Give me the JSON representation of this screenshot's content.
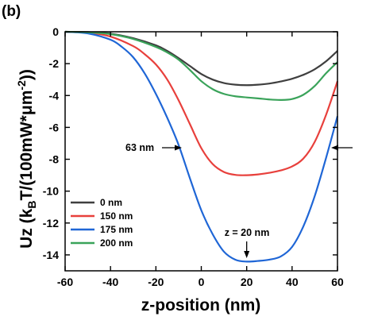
{
  "chart_data": {
    "type": "line",
    "panel_label": "(b)",
    "xlabel": "z-position (nm)",
    "ylabel_parts": {
      "pre": "Uz (k",
      "sub": "B",
      "mid": "T/(100mW*μm",
      "sup": "-2",
      "post": "))"
    },
    "xlim": [
      -60,
      60
    ],
    "ylim": [
      -15,
      0
    ],
    "xticks": [
      -60,
      -40,
      -20,
      0,
      20,
      40,
      60
    ],
    "yticks": [
      0,
      -2,
      -4,
      -6,
      -8,
      -10,
      -12,
      -14
    ],
    "legend_position": "lower-left",
    "grid": false,
    "series": [
      {
        "name": "0 nm",
        "color": "#3f3f3f",
        "x": [
          -60,
          -50,
          -40,
          -30,
          -20,
          -15,
          -10,
          -5,
          0,
          5,
          10,
          15,
          20,
          25,
          30,
          35,
          40,
          45,
          50,
          55,
          60
        ],
        "y": [
          0,
          -0.02,
          -0.12,
          -0.4,
          -0.85,
          -1.2,
          -1.65,
          -2.15,
          -2.65,
          -3.0,
          -3.22,
          -3.32,
          -3.35,
          -3.32,
          -3.25,
          -3.12,
          -2.95,
          -2.7,
          -2.35,
          -1.85,
          -1.2
        ]
      },
      {
        "name": "150 nm",
        "color": "#e8403c",
        "x": [
          -60,
          -50,
          -40,
          -30,
          -25,
          -20,
          -15,
          -10,
          -5,
          0,
          5,
          10,
          15,
          20,
          25,
          30,
          35,
          40,
          45,
          50,
          55,
          60
        ],
        "y": [
          0,
          -0.05,
          -0.3,
          -0.9,
          -1.4,
          -2.05,
          -3.0,
          -4.3,
          -5.8,
          -7.3,
          -8.3,
          -8.8,
          -8.98,
          -9.0,
          -8.95,
          -8.85,
          -8.7,
          -8.45,
          -7.95,
          -6.9,
          -5.2,
          -3.1
        ]
      },
      {
        "name": "175 nm",
        "color": "#1f66d6",
        "x": [
          -60,
          -50,
          -40,
          -35,
          -30,
          -25,
          -20,
          -15,
          -10,
          -5,
          0,
          5,
          10,
          15,
          20,
          25,
          30,
          35,
          40,
          45,
          50,
          55,
          60
        ],
        "y": [
          0,
          -0.1,
          -0.5,
          -0.95,
          -1.6,
          -2.6,
          -3.9,
          -5.4,
          -7.1,
          -9.2,
          -11.2,
          -12.7,
          -13.8,
          -14.3,
          -14.42,
          -14.38,
          -14.3,
          -14.1,
          -13.5,
          -12.2,
          -10.3,
          -7.9,
          -5.3
        ]
      },
      {
        "name": "200 nm",
        "color": "#3aa35a",
        "x": [
          -60,
          -50,
          -40,
          -30,
          -20,
          -15,
          -10,
          -5,
          0,
          5,
          10,
          15,
          20,
          25,
          30,
          35,
          40,
          45,
          50,
          55,
          60
        ],
        "y": [
          0,
          -0.03,
          -0.15,
          -0.45,
          -0.95,
          -1.3,
          -1.75,
          -2.4,
          -3.1,
          -3.6,
          -3.9,
          -4.05,
          -4.12,
          -4.18,
          -4.25,
          -4.28,
          -4.22,
          -3.95,
          -3.4,
          -2.6,
          -1.9
        ]
      }
    ],
    "annotations": [
      {
        "text": "63 nm",
        "x": -20,
        "y": -7.2,
        "arrow": "right"
      },
      {
        "text": "z = 20 nm",
        "x": 20,
        "y": -12.2,
        "arrow": "down"
      }
    ]
  }
}
